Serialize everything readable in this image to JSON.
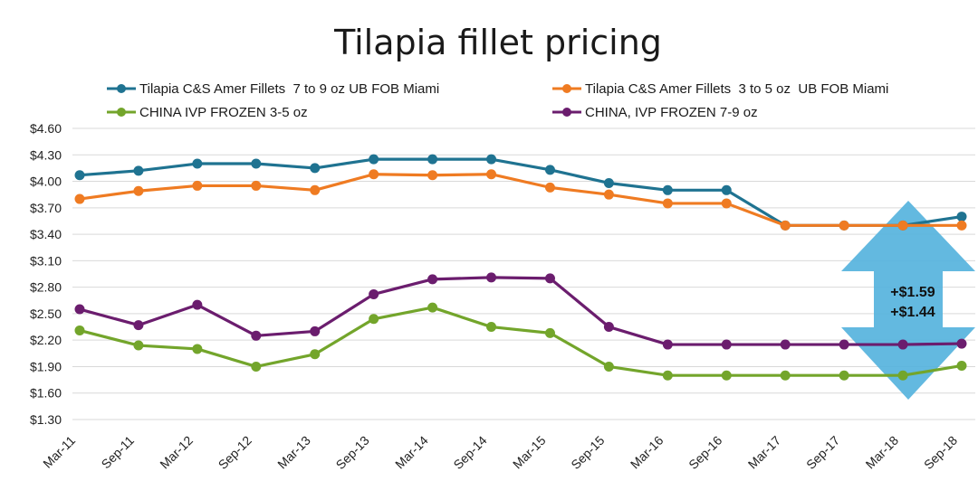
{
  "chart_data": {
    "type": "line",
    "title": "Tilapia fillet pricing",
    "categories": [
      "Mar-11",
      "Sep-11",
      "Mar-12",
      "Sep-12",
      "Mar-13",
      "Sep-13",
      "Mar-14",
      "Sep-14",
      "Mar-15",
      "Sep-15",
      "Mar-16",
      "Sep-16",
      "Mar-17",
      "Sep-17",
      "Mar-18",
      "Sep-18"
    ],
    "ylim": [
      1.3,
      4.6
    ],
    "yticks": [
      1.3,
      1.6,
      1.9,
      2.2,
      2.5,
      2.8,
      3.1,
      3.4,
      3.7,
      4.0,
      4.3,
      4.6
    ],
    "ytick_labels": [
      "$1.30",
      "$1.60",
      "$1.90",
      "$2.20",
      "$2.50",
      "$2.80",
      "$3.10",
      "$3.40",
      "$3.70",
      "$4.00",
      "$4.30",
      "$4.60"
    ],
    "grid": "horizontal",
    "legend_position": "top",
    "series": [
      {
        "name": "Tilapia C&S Amer Fillets  7 to 9 oz UB FOB Miami",
        "color": "#1f7391",
        "values": [
          4.07,
          4.12,
          4.2,
          4.2,
          4.15,
          4.25,
          4.25,
          4.25,
          4.13,
          3.98,
          3.9,
          3.9,
          3.5,
          3.5,
          3.5,
          3.6
        ]
      },
      {
        "name": "Tilapia C&S Amer Fillets  3 to 5 oz  UB FOB Miami",
        "color": "#ef7b22",
        "values": [
          3.8,
          3.89,
          3.95,
          3.95,
          3.9,
          4.08,
          4.07,
          4.08,
          3.93,
          3.85,
          3.75,
          3.75,
          3.5,
          3.5,
          3.5,
          3.5
        ]
      },
      {
        "name": "CHINA IVP FROZEN 3-5 oz",
        "color": "#73a52b",
        "values": [
          2.31,
          2.14,
          2.1,
          1.9,
          2.04,
          2.44,
          2.57,
          2.35,
          2.28,
          1.9,
          1.8,
          1.8,
          1.8,
          1.8,
          1.8,
          1.91
        ]
      },
      {
        "name": "CHINA, IVP FROZEN 7-9 oz",
        "color": "#6b1d6e",
        "values": [
          2.55,
          2.37,
          2.6,
          2.25,
          2.3,
          2.72,
          2.89,
          2.91,
          2.9,
          2.35,
          2.15,
          2.15,
          2.15,
          2.15,
          2.15,
          2.16
        ]
      }
    ],
    "annotations": [
      "+$1.59",
      "+$1.44"
    ],
    "annotation_arrow_color": "#56b3dd"
  }
}
